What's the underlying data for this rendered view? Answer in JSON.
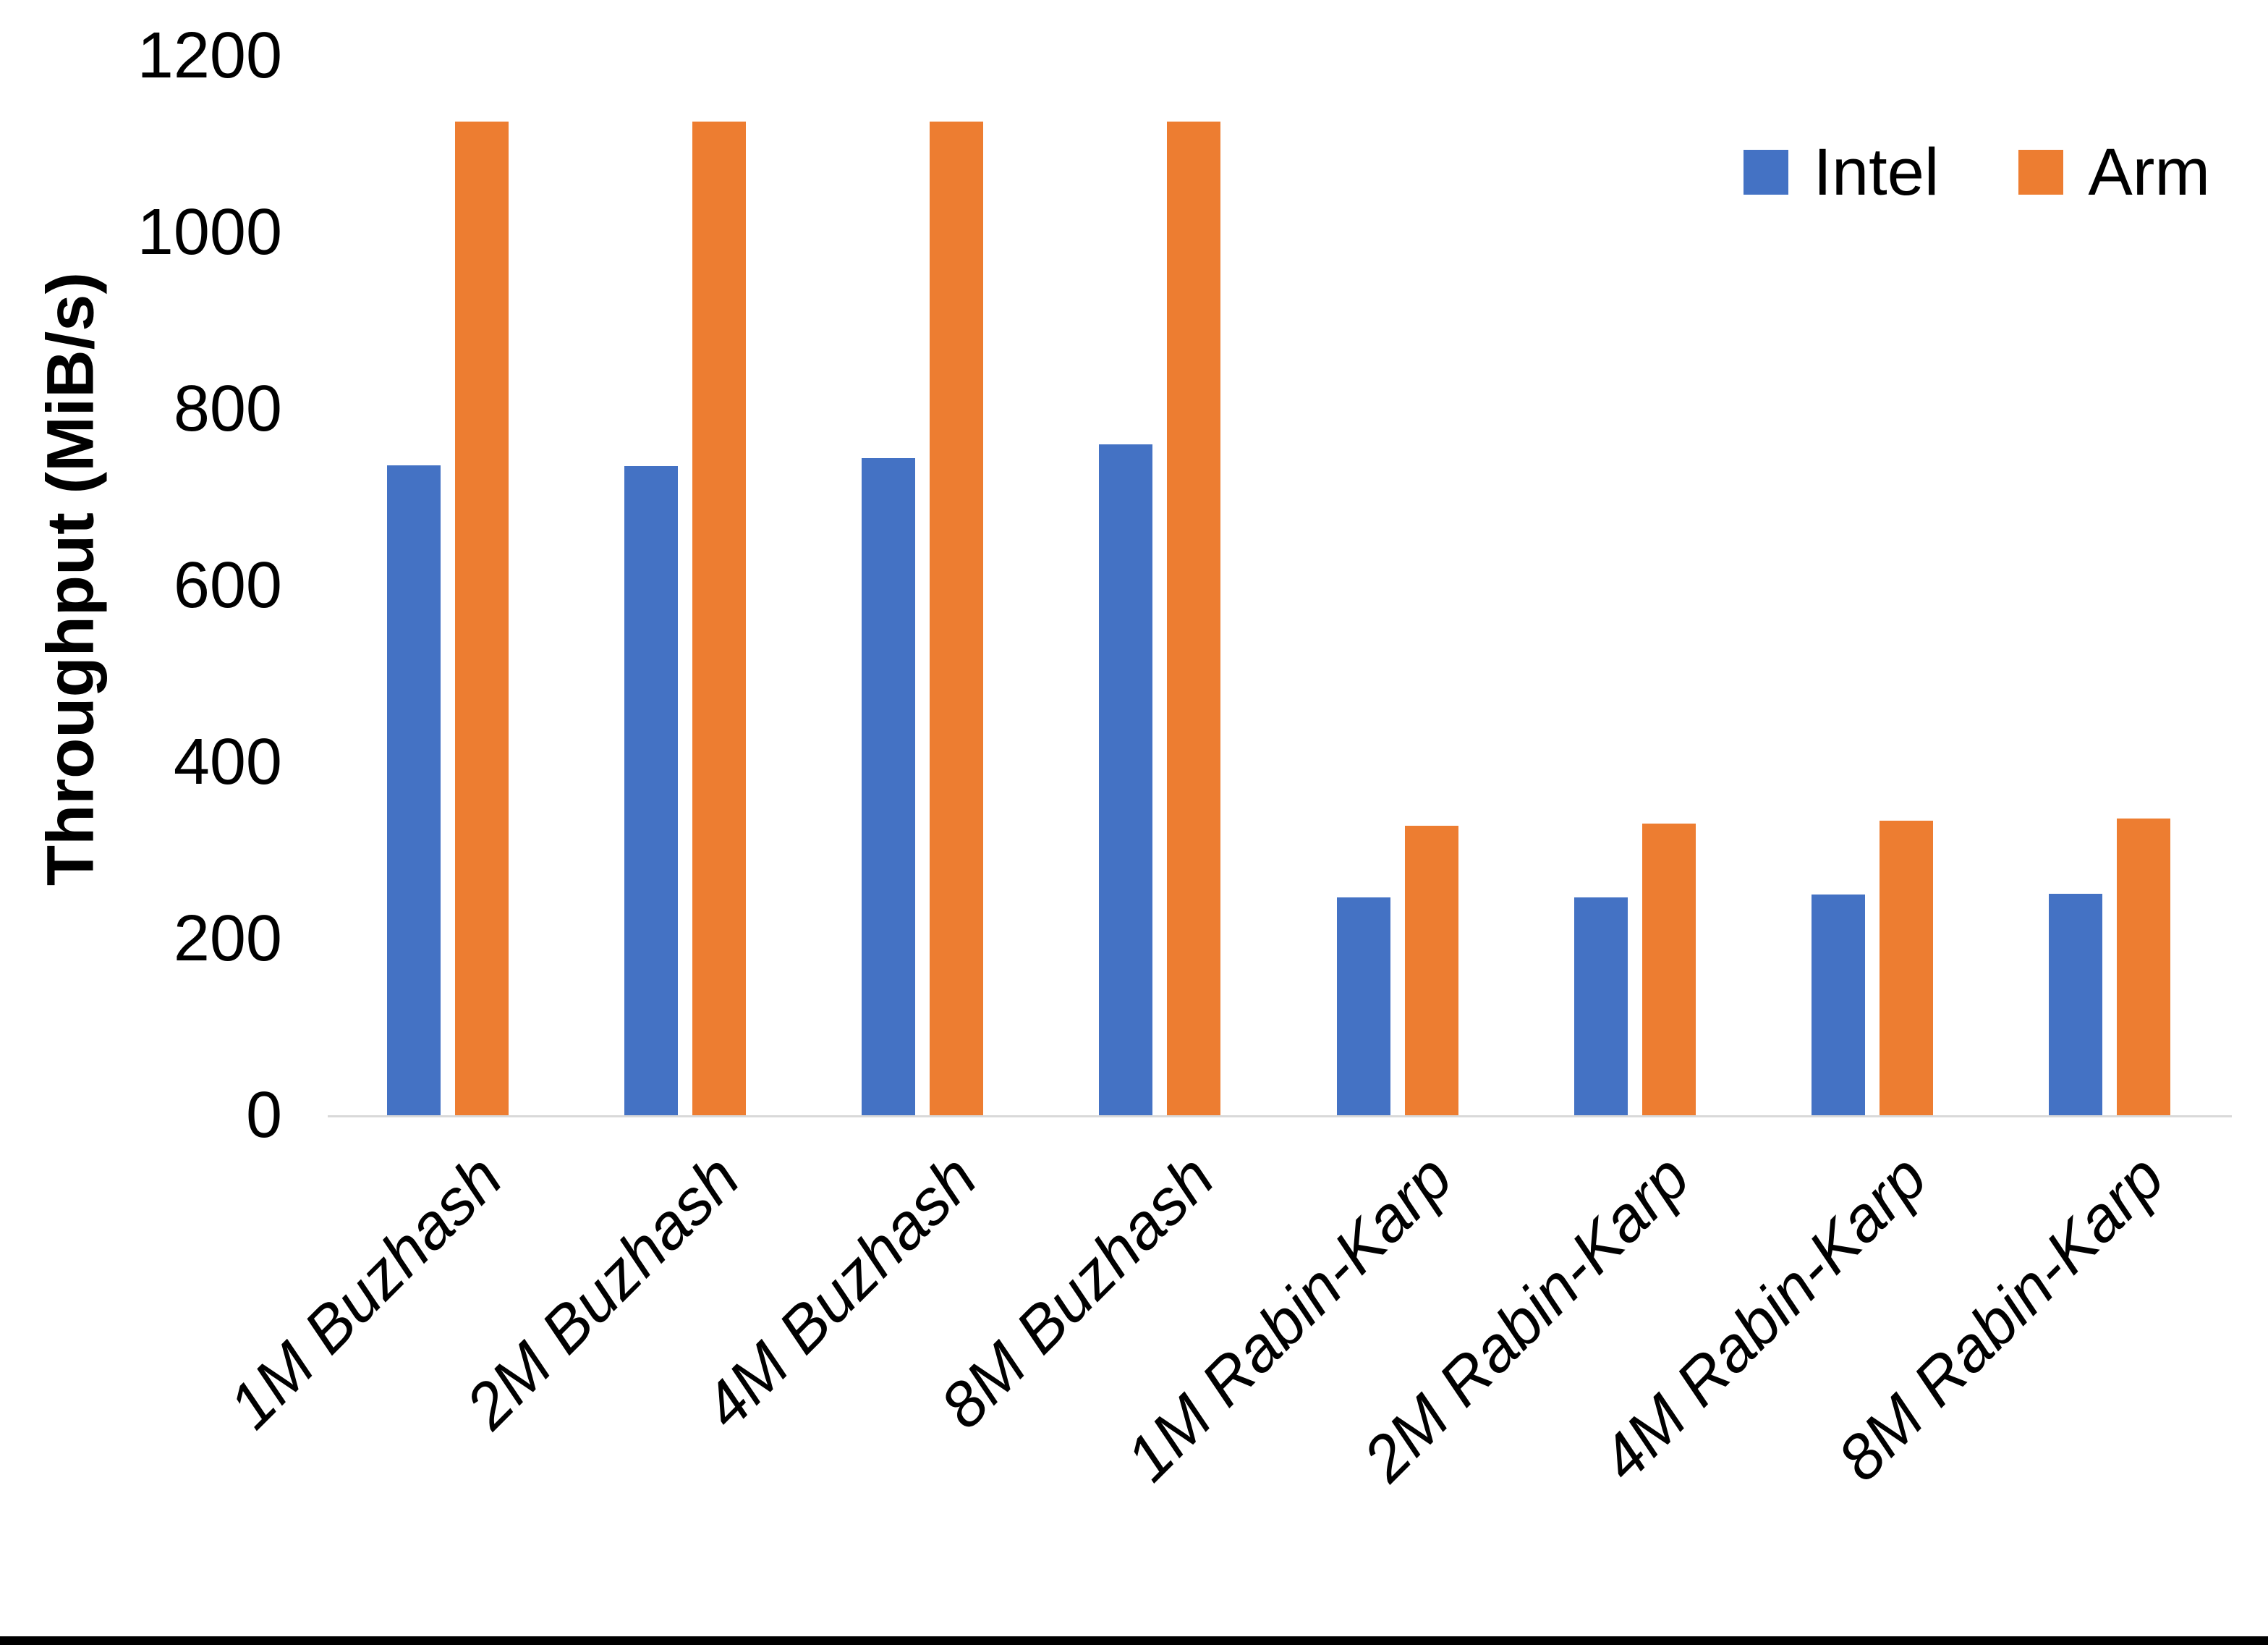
{
  "chart_data": {
    "type": "bar",
    "categories": [
      "1M Buzhash",
      "2M Buzhash",
      "4M Buzhash",
      "8M Buzhash",
      "1M Rabin-Karp",
      "2M Rabin-Karp",
      "4M Rabin-Karp",
      "8M Rabin-Karp"
    ],
    "series": [
      {
        "name": "Intel",
        "color": "#4472C4",
        "values": [
          736,
          735,
          744,
          760,
          247,
          247,
          250,
          251
        ]
      },
      {
        "name": "Arm",
        "color": "#ED7D31",
        "values": [
          1125,
          1125,
          1125,
          1125,
          328,
          330,
          334,
          336
        ]
      }
    ],
    "title": "",
    "xlabel": "",
    "ylabel": "Throughput (MiB/s)",
    "ylim": [
      0,
      1200
    ],
    "yticks": [
      0,
      200,
      400,
      600,
      800,
      1000,
      1200
    ],
    "grid": false,
    "legend_position": "top-right",
    "axis_line_color": "#D9D9D9",
    "text_color": "#000000",
    "background_color": "#FFFFFF",
    "bottom_edge_color": "#000000"
  }
}
